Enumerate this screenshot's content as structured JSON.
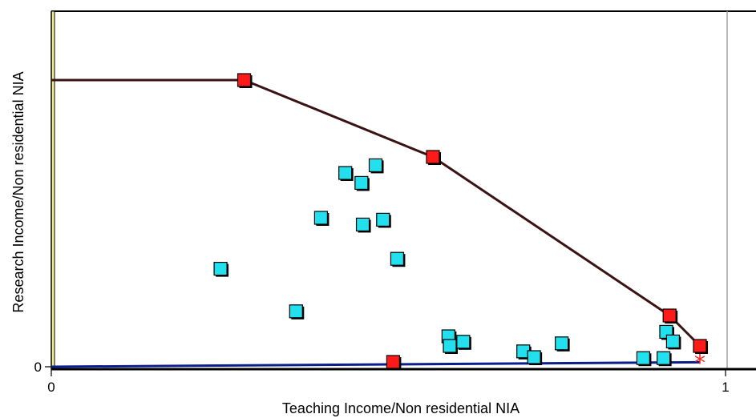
{
  "chart_data": {
    "type": "scatter",
    "xlabel": "Teaching Income/Non residential NIA",
    "ylabel": "Research Income/Non residential NIA",
    "xlim": [
      0,
      1
    ],
    "ylim": [
      0,
      1
    ],
    "x_ticks": [
      {
        "value": 0,
        "label": "0"
      },
      {
        "value": 1,
        "label": "1"
      }
    ],
    "y_ticks": [
      {
        "value": 0,
        "label": "0"
      }
    ],
    "grid": false,
    "frontier": {
      "points": [
        {
          "x": 0.0,
          "y": 0.895
        },
        {
          "x": 0.286,
          "y": 0.895
        },
        {
          "x": 0.566,
          "y": 0.655
        },
        {
          "x": 0.917,
          "y": 0.16
        },
        {
          "x": 0.962,
          "y": 0.065
        }
      ],
      "color": "#3a1414"
    },
    "efficient_points": [
      {
        "x": 0.286,
        "y": 0.895
      },
      {
        "x": 0.566,
        "y": 0.655
      },
      {
        "x": 0.917,
        "y": 0.16
      },
      {
        "x": 0.962,
        "y": 0.065
      },
      {
        "x": 0.507,
        "y": 0.015
      }
    ],
    "inefficient_points": [
      {
        "x": 0.251,
        "y": 0.306
      },
      {
        "x": 0.363,
        "y": 0.173
      },
      {
        "x": 0.4,
        "y": 0.465
      },
      {
        "x": 0.436,
        "y": 0.605
      },
      {
        "x": 0.46,
        "y": 0.574
      },
      {
        "x": 0.481,
        "y": 0.629
      },
      {
        "x": 0.462,
        "y": 0.444
      },
      {
        "x": 0.492,
        "y": 0.459
      },
      {
        "x": 0.513,
        "y": 0.337
      },
      {
        "x": 0.589,
        "y": 0.095
      },
      {
        "x": 0.591,
        "y": 0.065
      },
      {
        "x": 0.611,
        "y": 0.078
      },
      {
        "x": 0.7,
        "y": 0.048
      },
      {
        "x": 0.716,
        "y": 0.03
      },
      {
        "x": 0.757,
        "y": 0.073
      },
      {
        "x": 0.878,
        "y": 0.027
      },
      {
        "x": 0.908,
        "y": 0.027
      },
      {
        "x": 0.912,
        "y": 0.109
      },
      {
        "x": 0.922,
        "y": 0.079
      }
    ],
    "baseline": {
      "from": {
        "x": 0.0,
        "y": 0.0
      },
      "to": {
        "x": 0.962,
        "y": 0.014
      },
      "color": "#0a1e8c"
    },
    "marker": {
      "x": 0.962,
      "y": 0.014,
      "symbol": "*",
      "color": "#ff2020"
    },
    "colors": {
      "efficient": "#ff1a1a",
      "inefficient": "#22e0ee",
      "outline": "#000000",
      "left_stripe": "#f2f08a"
    }
  }
}
